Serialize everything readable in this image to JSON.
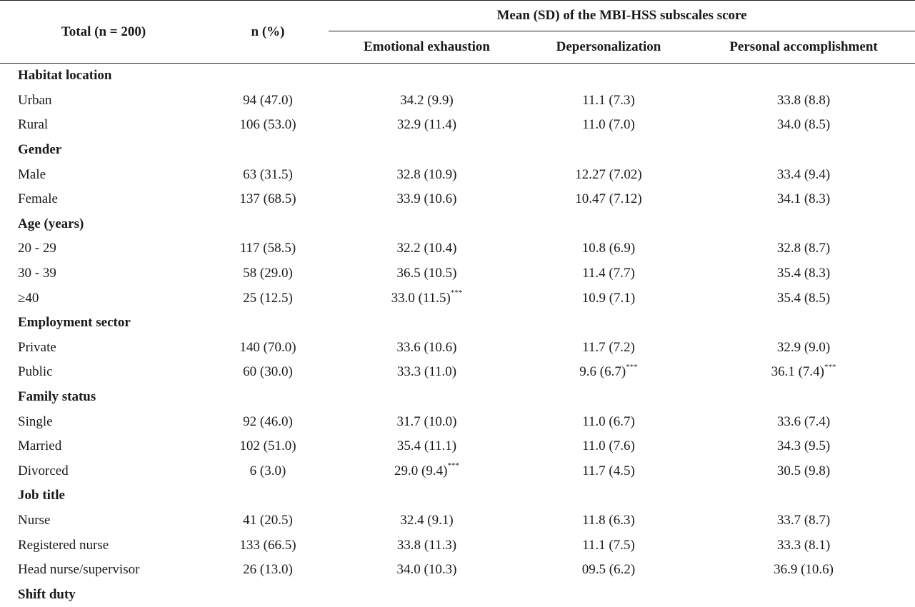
{
  "header": {
    "total_label": "Total (n = 200)",
    "n_label": "n (%)",
    "group_label": "Mean (SD) of the MBI-HSS subscales score",
    "subscales": [
      "Emotional exhaustion",
      "Depersonalization",
      "Personal accomplishment"
    ]
  },
  "rows": [
    {
      "type": "section",
      "label": "Habitat location"
    },
    {
      "type": "data",
      "label": "Urban",
      "n": "94 (47.0)",
      "ee": "34.2 (9.9)",
      "dp": "11.1 (7.3)",
      "pa": "33.8 (8.8)"
    },
    {
      "type": "data",
      "label": "Rural",
      "n": "106 (53.0)",
      "ee": "32.9 (11.4)",
      "dp": "11.0 (7.0)",
      "pa": "34.0 (8.5)"
    },
    {
      "type": "section",
      "label": "Gender"
    },
    {
      "type": "data",
      "label": "Male",
      "n": "63 (31.5)",
      "ee": "32.8 (10.9)",
      "dp": "12.27 (7.02)",
      "pa": "33.4 (9.4)"
    },
    {
      "type": "data",
      "label": "Female",
      "n": "137 (68.5)",
      "ee": "33.9 (10.6)",
      "dp": "10.47 (7.12)",
      "pa": "34.1 (8.3)"
    },
    {
      "type": "section",
      "label": "Age (years)"
    },
    {
      "type": "data",
      "label": "20 - 29",
      "n": "117 (58.5)",
      "ee": "32.2 (10.4)",
      "dp": "10.8 (6.9)",
      "pa": "32.8 (8.7)"
    },
    {
      "type": "data",
      "label": "30 - 39",
      "n": "58 (29.0)",
      "ee": "36.5 (10.5)",
      "dp": "11.4 (7.7)",
      "pa": "35.4 (8.3)"
    },
    {
      "type": "data",
      "label": "≥40",
      "n": "25 (12.5)",
      "ee": "33.0 (11.5)",
      "ee_sup": "***",
      "dp": "10.9 (7.1)",
      "pa": "35.4 (8.5)"
    },
    {
      "type": "section",
      "label": "Employment sector"
    },
    {
      "type": "data",
      "label": "Private",
      "n": "140 (70.0)",
      "ee": "33.6 (10.6)",
      "dp": "11.7 (7.2)",
      "pa": "32.9 (9.0)"
    },
    {
      "type": "data",
      "label": "Public",
      "n": "60 (30.0)",
      "ee": "33.3 (11.0)",
      "dp": "9.6 (6.7)",
      "dp_sup": "***",
      "pa": "36.1 (7.4)",
      "pa_sup": "***"
    },
    {
      "type": "section",
      "label": "Family status"
    },
    {
      "type": "data",
      "label": "Single",
      "n": "92 (46.0)",
      "ee": "31.7 (10.0)",
      "dp": "11.0 (6.7)",
      "pa": "33.6 (7.4)"
    },
    {
      "type": "data",
      "label": "Married",
      "n": "102 (51.0)",
      "ee": "35.4 (11.1)",
      "dp": "11.0 (7.6)",
      "pa": "34.3 (9.5)"
    },
    {
      "type": "data",
      "label": "Divorced",
      "n": "6 (3.0)",
      "ee": "29.0 (9.4)",
      "ee_sup": "***",
      "dp": "11.7 (4.5)",
      "pa": "30.5 (9.8)"
    },
    {
      "type": "section",
      "label": "Job title"
    },
    {
      "type": "data",
      "label": "Nurse",
      "n": "41 (20.5)",
      "ee": "32.4 (9.1)",
      "dp": "11.8 (6.3)",
      "pa": "33.7 (8.7)"
    },
    {
      "type": "data",
      "label": "Registered nurse",
      "n": "133 (66.5)",
      "ee": "33.8 (11.3)",
      "dp": "11.1 (7.5)",
      "pa": "33.3 (8.1)"
    },
    {
      "type": "data",
      "label": "Head nurse/supervisor",
      "n": "26 (13.0)",
      "ee": "34.0 (10.3)",
      "dp": "09.5 (6.2)",
      "pa": "36.9 (10.6)"
    },
    {
      "type": "section",
      "label": "Shift duty"
    }
  ]
}
